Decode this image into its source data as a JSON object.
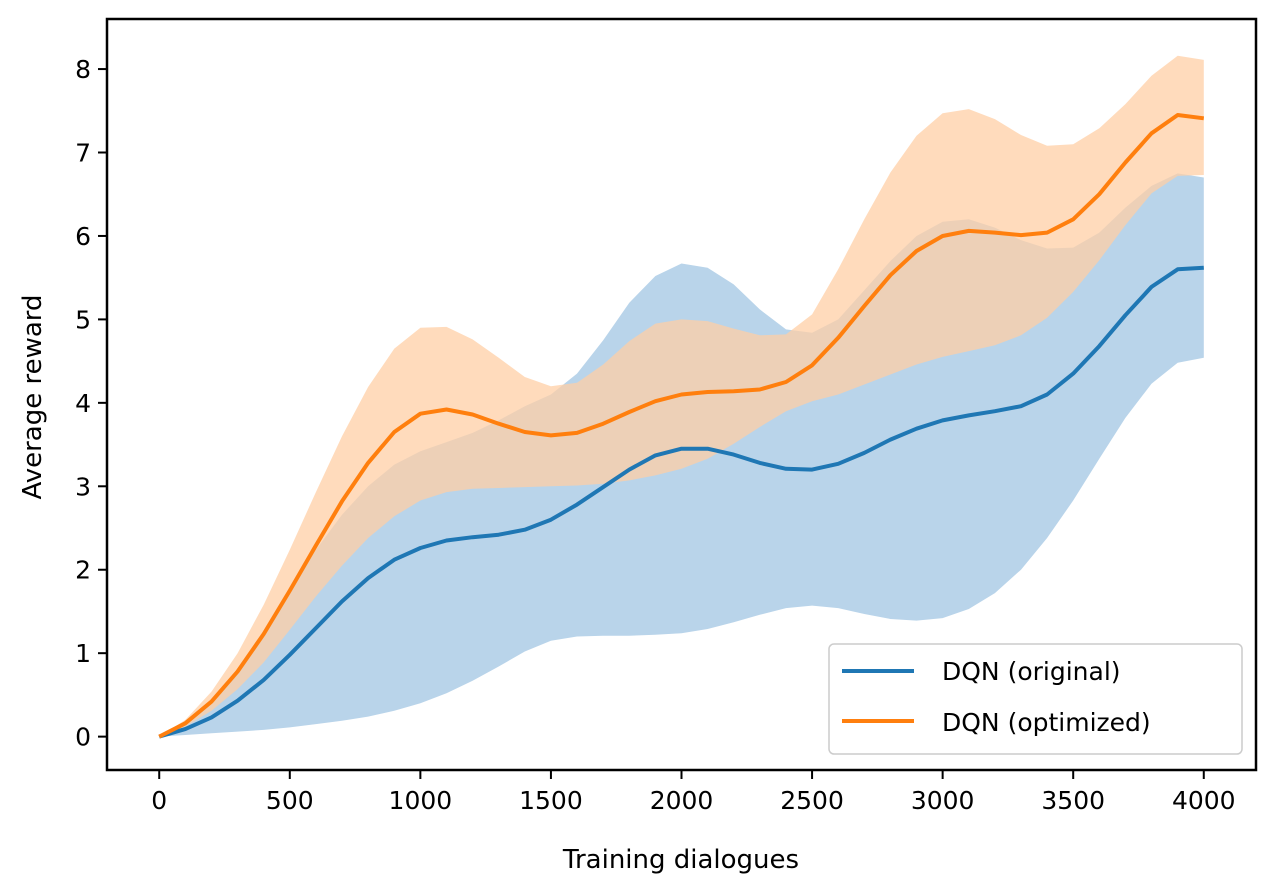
{
  "chart_data": {
    "type": "line",
    "title": "",
    "xlabel": "Training dialogues",
    "ylabel": "Average reward",
    "xlim": [
      -200,
      4200
    ],
    "ylim": [
      -0.4,
      8.6
    ],
    "xticks": [
      0,
      500,
      1000,
      1500,
      2000,
      2500,
      3000,
      3500,
      4000
    ],
    "yticks": [
      0,
      1,
      2,
      3,
      4,
      5,
      6,
      7,
      8
    ],
    "grid": false,
    "legend": "lower-right",
    "x": [
      0,
      100,
      200,
      300,
      400,
      500,
      600,
      700,
      800,
      900,
      1000,
      1100,
      1200,
      1300,
      1400,
      1500,
      1600,
      1700,
      1800,
      1900,
      2000,
      2100,
      2200,
      2300,
      2400,
      2500,
      2600,
      2700,
      2800,
      2900,
      3000,
      3100,
      3200,
      3300,
      3400,
      3500,
      3600,
      3700,
      3800,
      3900,
      4000
    ],
    "series": [
      {
        "name": "DQN (original)",
        "color": "#1f77b4",
        "band_color": "#b9d4ea",
        "values": [
          0,
          0.09,
          0.23,
          0.43,
          0.68,
          0.98,
          1.3,
          1.62,
          1.9,
          2.12,
          2.26,
          2.35,
          2.39,
          2.42,
          2.48,
          2.6,
          2.78,
          2.99,
          3.2,
          3.37,
          3.45,
          3.45,
          3.38,
          3.28,
          3.21,
          3.2,
          3.27,
          3.4,
          3.56,
          3.69,
          3.79,
          3.85,
          3.9,
          3.96,
          4.1,
          4.35,
          4.68,
          5.05,
          5.39,
          5.6,
          5.62
        ],
        "lower": [
          0,
          0.02,
          0.04,
          0.06,
          0.08,
          0.11,
          0.15,
          0.19,
          0.24,
          0.31,
          0.4,
          0.52,
          0.67,
          0.84,
          1.02,
          1.15,
          1.2,
          1.21,
          1.21,
          1.22,
          1.24,
          1.29,
          1.37,
          1.46,
          1.54,
          1.57,
          1.54,
          1.47,
          1.41,
          1.39,
          1.42,
          1.53,
          1.72,
          2.0,
          2.38,
          2.83,
          3.33,
          3.82,
          4.23,
          4.48,
          4.54
        ],
        "upper": [
          0,
          0.15,
          0.4,
          0.78,
          1.25,
          1.75,
          2.24,
          2.66,
          3.0,
          3.26,
          3.42,
          3.53,
          3.64,
          3.79,
          3.96,
          4.1,
          4.35,
          4.75,
          5.2,
          5.52,
          5.67,
          5.62,
          5.42,
          5.12,
          4.88,
          4.84,
          5.0,
          5.35,
          5.7,
          6.0,
          6.17,
          6.2,
          6.1,
          5.95,
          5.85,
          5.86,
          6.04,
          6.34,
          6.6,
          6.75,
          6.7
        ]
      },
      {
        "name": "DQN (optimized)",
        "color": "#ff7f0e",
        "band_color": "#ffcfa5",
        "values": [
          0,
          0.16,
          0.42,
          0.78,
          1.23,
          1.75,
          2.29,
          2.82,
          3.28,
          3.65,
          3.87,
          3.92,
          3.86,
          3.75,
          3.65,
          3.61,
          3.64,
          3.75,
          3.89,
          4.02,
          4.1,
          4.13,
          4.14,
          4.16,
          4.25,
          4.45,
          4.78,
          5.16,
          5.53,
          5.82,
          6.0,
          6.06,
          6.04,
          6.01,
          6.04,
          6.2,
          6.5,
          6.88,
          7.23,
          7.45,
          7.41
        ],
        "lower": [
          0,
          0.12,
          0.31,
          0.57,
          0.89,
          1.28,
          1.68,
          2.05,
          2.38,
          2.64,
          2.83,
          2.93,
          2.97,
          2.98,
          2.99,
          3.0,
          3.01,
          3.03,
          3.07,
          3.13,
          3.21,
          3.33,
          3.51,
          3.71,
          3.9,
          4.02,
          4.1,
          4.22,
          4.34,
          4.46,
          4.55,
          4.62,
          4.69,
          4.81,
          5.02,
          5.33,
          5.71,
          6.13,
          6.51,
          6.72,
          6.73
        ],
        "upper": [
          0,
          0.2,
          0.54,
          1.0,
          1.58,
          2.24,
          2.93,
          3.6,
          4.19,
          4.65,
          4.9,
          4.91,
          4.76,
          4.54,
          4.31,
          4.2,
          4.24,
          4.46,
          4.74,
          4.95,
          5.0,
          4.98,
          4.89,
          4.81,
          4.82,
          5.06,
          5.6,
          6.2,
          6.76,
          7.2,
          7.47,
          7.52,
          7.4,
          7.21,
          7.08,
          7.1,
          7.29,
          7.58,
          7.92,
          8.16,
          8.11
        ]
      }
    ]
  }
}
